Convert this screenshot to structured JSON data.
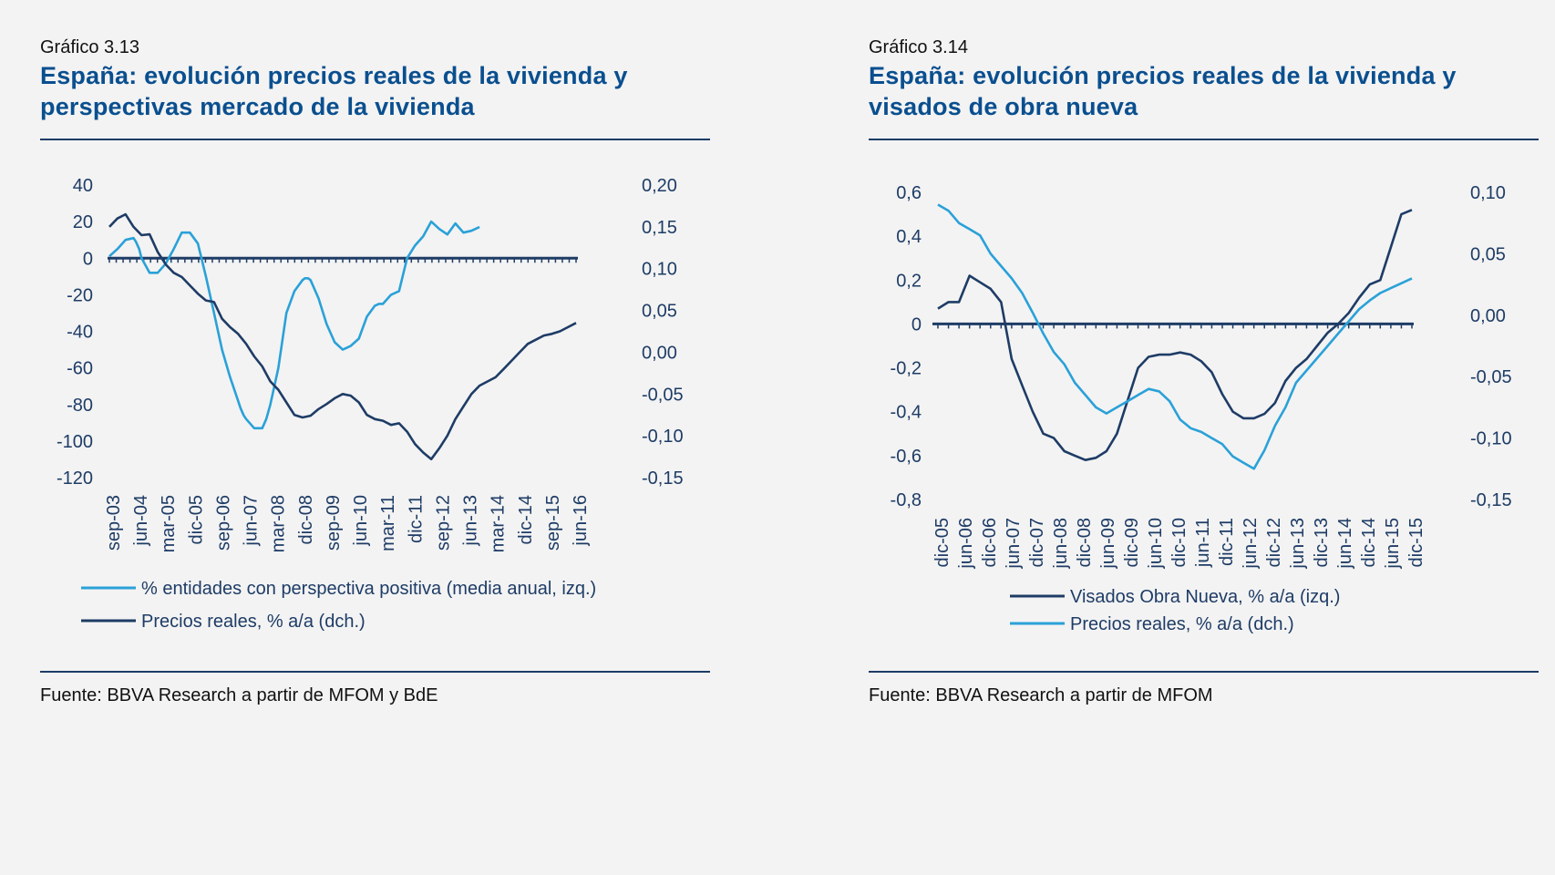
{
  "charts": [
    {
      "caption": "Gráfico 3.13",
      "title_line1": "España: evolución precios reales de la vivienda y",
      "title_line2": "perspectivas mercado de la vivienda",
      "source": "Fuente: BBVA Research a partir de MFOM y BdE"
    },
    {
      "caption": "Gráfico 3.14",
      "title_line1": "España: evolución precios reales de la vivienda y",
      "title_line2": "visados de obra nueva",
      "source": "Fuente: BBVA Research a partir de MFOM"
    }
  ],
  "colors": {
    "dark": "#1e3c66",
    "light": "#2aa1d8",
    "title": "#0a4f8f"
  },
  "chart_data": [
    {
      "type": "line",
      "title": "España: evolución precios reales de la vivienda y perspectivas mercado de la vivienda",
      "x_tick_labels": [
        "sep-03",
        "jun-04",
        "mar-05",
        "dic-05",
        "sep-06",
        "jun-07",
        "mar-08",
        "dic-08",
        "sep-09",
        "jun-10",
        "mar-11",
        "dic-11",
        "sep-12",
        "jun-13",
        "mar-14",
        "dic-14",
        "sep-15",
        "jun-16"
      ],
      "y_left": {
        "ticks": [
          "40",
          "20",
          "0",
          "-20",
          "-40",
          "-60",
          "-80",
          "-100",
          "-120"
        ],
        "range": [
          -120,
          40
        ]
      },
      "y_right": {
        "ticks": [
          "0,20",
          "0,15",
          "0,10",
          "0,05",
          "0,00",
          "-0,05",
          "-0,10",
          "-0,15"
        ],
        "range": [
          -0.15,
          0.2
        ]
      },
      "zero_line": 0,
      "series": [
        {
          "name": "% entidades con perspectiva positiva (media anual, izq.)",
          "axis": "left",
          "color": "light",
          "x": [
            0,
            1,
            2,
            3,
            3.3,
            3.7,
            4,
            5,
            6,
            7,
            8,
            9,
            10,
            11,
            12,
            13,
            14,
            15,
            16,
            16.3,
            16.7,
            17,
            18,
            19,
            19.5,
            20,
            21,
            22,
            23,
            24,
            24.3,
            24.7,
            25,
            26,
            27,
            28,
            29,
            30,
            31,
            32,
            33,
            33.5,
            34,
            35,
            36,
            37,
            38,
            39,
            40,
            41,
            42,
            43,
            44,
            45,
            46,
            47,
            48,
            49,
            50,
            51,
            52,
            53,
            54,
            55,
            56,
            57,
            58,
            59,
            60,
            61,
            62,
            63,
            64,
            65,
            66,
            67,
            68,
            68.3,
            68.7
          ],
          "values": [
            1,
            5,
            10,
            11,
            9,
            5,
            0,
            -8,
            -8,
            -3,
            5,
            14,
            14,
            8,
            -10,
            -30,
            -50,
            -65,
            -78,
            -82,
            -86,
            -88,
            -93,
            -93,
            -88,
            -80,
            -60,
            -30,
            -18,
            -12,
            -11,
            -11,
            -12,
            -22,
            -36,
            -46,
            -50,
            -48,
            -44,
            -32,
            -26,
            -25,
            -25,
            -20,
            -18,
            0,
            7,
            12,
            20,
            16,
            13,
            19,
            14,
            15,
            17,
            null,
            null,
            null,
            null,
            null,
            null,
            null,
            null,
            null,
            null,
            null,
            null,
            null,
            null,
            null,
            null,
            null,
            null,
            null,
            null,
            null,
            null,
            null,
            null
          ]
        },
        {
          "name": "Precios reales, % a/a (dch.)",
          "axis": "right",
          "color": "dark",
          "x": [
            0,
            1,
            2,
            3,
            4,
            5,
            6,
            7,
            8,
            9,
            10,
            11,
            12,
            13,
            14,
            15,
            16,
            17,
            18,
            19,
            20,
            21,
            22,
            23,
            24,
            25,
            26,
            27,
            28,
            29,
            30,
            31,
            32,
            33,
            34,
            35,
            36,
            37,
            38,
            39,
            40,
            41,
            42,
            43,
            44,
            45,
            46,
            47,
            48,
            49,
            50,
            51,
            52,
            53,
            54,
            55,
            56,
            57,
            58,
            59,
            60,
            61,
            62,
            63,
            64,
            65,
            66,
            67,
            68
          ],
          "values": [
            0.15,
            0.16,
            0.165,
            0.15,
            0.14,
            0.141,
            0.12,
            0.105,
            0.095,
            0.09,
            0.08,
            0.07,
            0.062,
            0.06,
            0.04,
            0.03,
            0.022,
            0.01,
            -0.005,
            -0.017,
            -0.035,
            -0.045,
            -0.06,
            -0.075,
            -0.078,
            -0.076,
            -0.068,
            -0.062,
            -0.055,
            -0.05,
            -0.052,
            -0.06,
            -0.075,
            -0.08,
            -0.082,
            -0.087,
            -0.085,
            -0.095,
            -0.11,
            -0.12,
            -0.128,
            -0.115,
            -0.1,
            -0.08,
            -0.065,
            -0.05,
            -0.04,
            -0.035,
            -0.03,
            -0.02,
            -0.01,
            0.0,
            0.01,
            0.015,
            0.02,
            0.022,
            0.025,
            0.03,
            0.035,
            null,
            null,
            null,
            null,
            null,
            null,
            null,
            null,
            null,
            null
          ]
        }
      ],
      "legend": [
        {
          "label": "% entidades con perspectiva positiva (media anual, izq.)",
          "color": "light"
        },
        {
          "label": "Precios reales, % a/a (dch.)",
          "color": "dark"
        }
      ]
    },
    {
      "type": "line",
      "title": "España: evolución precios reales de la vivienda y visados de obra nueva",
      "x_tick_labels": [
        "dic-05",
        "jun-06",
        "dic-06",
        "jun-07",
        "dic-07",
        "jun-08",
        "dic-08",
        "jun-09",
        "dic-09",
        "jun-10",
        "dic-10",
        "jun-11",
        "dic-11",
        "jun-12",
        "dic-12",
        "jun-13",
        "dic-13",
        "jun-14",
        "dic-14",
        "jun-15",
        "dic-15"
      ],
      "y_left": {
        "ticks": [
          "0,6",
          "0,4",
          "0,2",
          "0",
          "-0,2",
          "-0,4",
          "-0,6",
          "-0,8"
        ],
        "range": [
          -0.8,
          0.6
        ]
      },
      "y_right": {
        "ticks": [
          "0,10",
          "0,05",
          "0,00",
          "-0,05",
          "-0,10",
          "-0,15"
        ],
        "range": [
          -0.15,
          0.1
        ]
      },
      "zero_line": 0,
      "series": [
        {
          "name": "Visados Obra Nueva, % a/a (izq.)",
          "axis": "left",
          "color": "dark",
          "x": [
            0,
            1,
            2,
            3,
            4,
            5,
            6,
            7,
            8,
            9,
            10,
            11,
            12,
            13,
            14,
            15,
            16,
            17,
            18,
            19,
            20,
            21,
            22,
            23,
            24,
            25,
            26,
            27,
            28,
            29,
            30,
            31,
            32,
            33,
            34,
            35,
            36,
            37,
            38,
            39,
            40,
            41,
            42,
            43,
            44,
            45,
            46,
            47,
            48,
            49,
            50,
            51,
            52,
            53,
            54,
            55,
            56,
            57,
            58,
            59,
            60,
            61,
            62,
            63,
            64
          ],
          "values": [
            0.07,
            0.1,
            0.1,
            0.22,
            0.19,
            0.16,
            0.1,
            -0.16,
            -0.28,
            -0.4,
            -0.5,
            -0.52,
            -0.58,
            -0.6,
            -0.62,
            -0.61,
            -0.58,
            -0.5,
            -0.35,
            -0.2,
            -0.15,
            -0.14,
            -0.14,
            -0.13,
            -0.14,
            -0.17,
            -0.22,
            -0.32,
            -0.4,
            -0.43,
            -0.43,
            -0.41,
            -0.36,
            -0.26,
            -0.2,
            -0.16,
            -0.1,
            -0.04,
            0.0,
            0.05,
            0.12,
            0.18,
            0.2,
            0.35,
            0.5,
            0.52,
            null,
            null,
            null,
            null,
            null,
            null,
            null,
            null,
            null,
            null,
            null,
            null,
            null,
            null,
            null,
            null,
            null,
            null,
            null
          ]
        },
        {
          "name": "Precios reales, % a/a (dch.)",
          "axis": "right",
          "color": "light",
          "x": [
            0,
            1,
            2,
            3,
            4,
            5,
            6,
            7,
            8,
            9,
            10,
            11,
            12,
            13,
            14,
            15,
            16,
            17,
            18,
            19,
            20,
            21,
            22,
            23,
            24,
            25,
            26,
            27,
            28,
            29,
            30,
            31,
            32,
            33,
            34,
            35,
            36,
            37,
            38,
            39,
            40,
            41,
            42,
            43,
            44,
            45,
            46,
            47,
            48,
            49,
            50,
            51,
            52,
            53,
            54,
            55,
            56,
            57,
            58,
            59,
            60,
            61,
            62,
            63,
            64
          ],
          "values": [
            0.09,
            0.085,
            0.075,
            0.07,
            0.065,
            0.05,
            0.04,
            0.03,
            0.018,
            0.002,
            -0.015,
            -0.03,
            -0.04,
            -0.055,
            -0.065,
            -0.075,
            -0.08,
            -0.075,
            -0.07,
            -0.065,
            -0.06,
            -0.062,
            -0.07,
            -0.085,
            -0.092,
            -0.095,
            -0.1,
            -0.105,
            -0.115,
            -0.12,
            -0.125,
            -0.11,
            -0.09,
            -0.075,
            -0.055,
            -0.045,
            -0.035,
            -0.025,
            -0.015,
            -0.005,
            0.005,
            0.012,
            0.018,
            0.022,
            0.026,
            0.03,
            null,
            null,
            null,
            null,
            null,
            null,
            null,
            null,
            null,
            null,
            null,
            null,
            null,
            null,
            null,
            null,
            null,
            null,
            null
          ]
        }
      ],
      "legend": [
        {
          "label": "Visados Obra Nueva, % a/a (izq.)",
          "color": "dark"
        },
        {
          "label": "Precios reales, % a/a (dch.)",
          "color": "light"
        }
      ]
    }
  ]
}
